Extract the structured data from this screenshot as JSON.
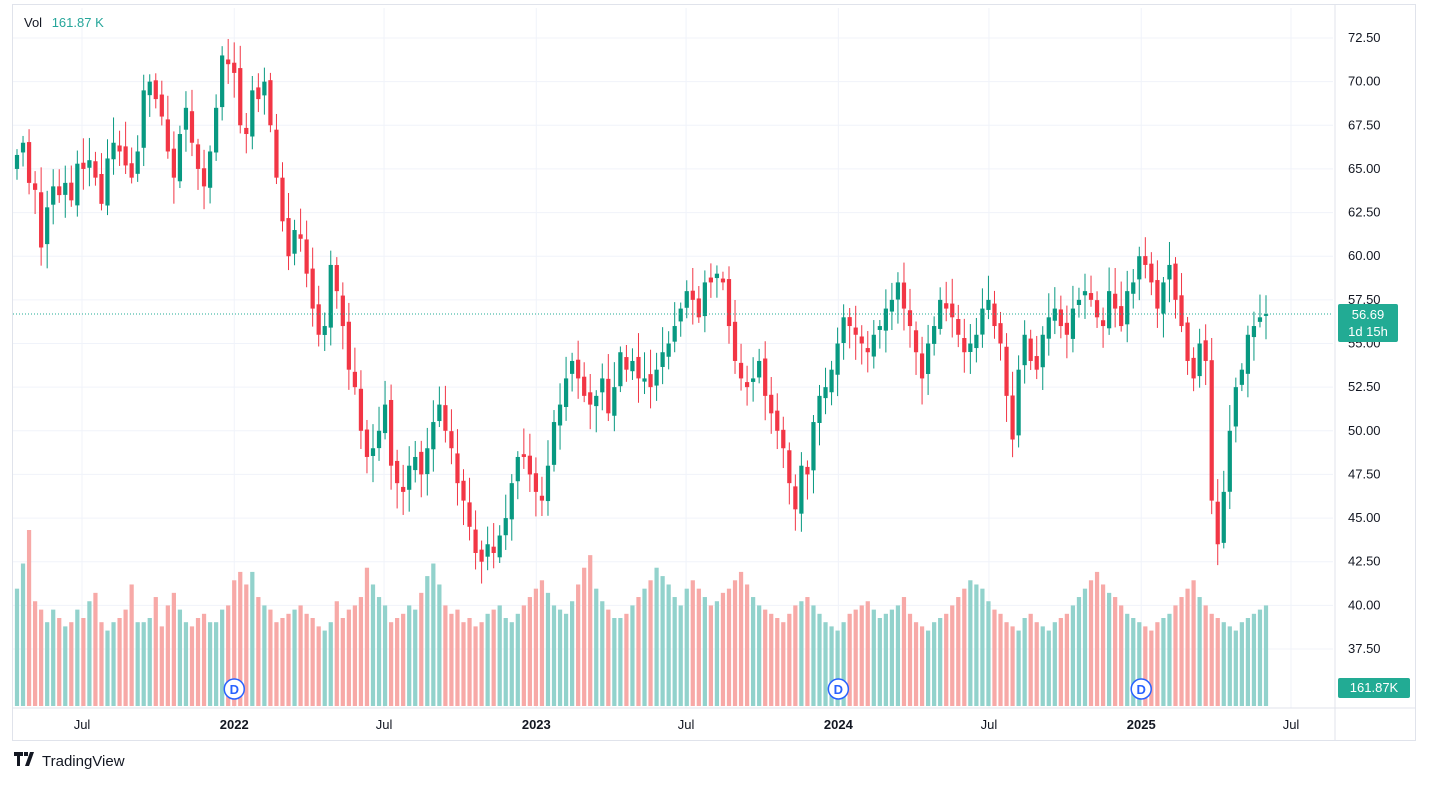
{
  "legend": {
    "label": "Vol",
    "value": "161.87 K"
  },
  "price_tag": {
    "price": "56.69",
    "countdown": "1d 15h"
  },
  "volume_tag": "161.87K",
  "branding": {
    "name": "TradingView",
    "logo": "tradingview-logo-icon"
  },
  "colors": {
    "up": "#089981",
    "down": "#f23645",
    "up_vol": "#92d2cc",
    "down_vol": "#f7a9a7",
    "marker": "#2962ff",
    "price_line": "#22ab94"
  },
  "chart_data": {
    "type": "candlestick",
    "title": "",
    "interval": "weekly",
    "y_ticks": [
      72.5,
      70.0,
      67.5,
      65.0,
      62.5,
      60.0,
      57.5,
      55.0,
      52.5,
      50.0,
      47.5,
      45.0,
      42.5,
      40.0,
      37.5
    ],
    "y_tick_labels": [
      "72.50",
      "70.00",
      "67.50",
      "65.00",
      "62.50",
      "60.00",
      "57.50",
      "55.00",
      "52.50",
      "50.00",
      "47.50",
      "45.00",
      "42.50",
      "40.00",
      "37.50"
    ],
    "ylim": [
      36.0,
      74.0
    ],
    "x_labels": [
      {
        "label": "Jul",
        "year": false,
        "t": "2021-07-01"
      },
      {
        "label": "2022",
        "year": true,
        "t": "2022-01-01"
      },
      {
        "label": "Jul",
        "year": false,
        "t": "2022-07-01"
      },
      {
        "label": "2023",
        "year": true,
        "t": "2023-01-01"
      },
      {
        "label": "Jul",
        "year": false,
        "t": "2023-07-01"
      },
      {
        "label": "2024",
        "year": true,
        "t": "2024-01-01"
      },
      {
        "label": "Jul",
        "year": false,
        "t": "2024-07-01"
      },
      {
        "label": "2025",
        "year": true,
        "t": "2025-01-01"
      },
      {
        "label": "Jul",
        "year": false,
        "t": "2025-07-01"
      }
    ],
    "last_price": 56.69,
    "dividend_markers": [
      {
        "label": "D",
        "t": "2022-01-01"
      },
      {
        "label": "D",
        "t": "2024-01-01"
      },
      {
        "label": "D",
        "t": "2025-01-01"
      }
    ],
    "close_series": [
      65.8,
      66.5,
      64.2,
      63.8,
      60.5,
      62.8,
      64.0,
      63.5,
      64.2,
      63.2,
      65.3,
      65.0,
      65.5,
      64.5,
      63.0,
      65.6,
      66.5,
      66.0,
      65.2,
      64.5,
      66.0,
      69.5,
      70.0,
      69.0,
      68.0,
      66.0,
      64.5,
      67.0,
      68.5,
      66.5,
      65.0,
      64.0,
      66.0,
      68.5,
      71.5,
      71.0,
      70.5,
      67.5,
      67.0,
      69.5,
      69.0,
      70.0,
      67.5,
      64.5,
      62.0,
      60.0,
      61.5,
      61.0,
      59.0,
      57.0,
      55.5,
      56.0,
      59.5,
      58.0,
      56.0,
      53.5,
      52.5,
      50.0,
      48.5,
      49.0,
      50.0,
      51.5,
      48.0,
      47.0,
      46.5,
      48.0,
      48.5,
      47.5,
      49.0,
      50.5,
      51.5,
      50.0,
      49.0,
      47.0,
      46.0,
      44.5,
      43.0,
      42.5,
      43.5,
      43.0,
      44.0,
      45.0,
      47.0,
      48.5,
      48.5,
      47.5,
      46.5,
      46.0,
      48.0,
      50.5,
      51.5,
      53.0,
      54.0,
      53.0,
      52.0,
      51.5,
      52.0,
      53.0,
      51.0,
      52.5,
      54.5,
      53.5,
      54.0,
      53.0,
      53.0,
      52.5,
      53.5,
      54.5,
      55.0,
      56.0,
      57.0,
      58.0,
      57.5,
      56.5,
      58.5,
      58.5,
      59.0,
      58.5,
      56.0,
      54.0,
      53.0,
      52.5,
      53.0,
      54.0,
      52.0,
      51.0,
      50.0,
      49.0,
      47.0,
      45.5,
      48.0,
      47.5,
      50.5,
      52.0,
      52.5,
      53.5,
      55.0,
      56.5,
      56.0,
      55.5,
      55.0,
      54.5,
      55.5,
      56.0,
      57.0,
      57.5,
      58.5,
      57.0,
      56.0,
      54.5,
      53.0,
      55.0,
      56.0,
      57.5,
      57.0,
      56.5,
      55.5,
      54.5,
      55.0,
      55.5,
      57.0,
      57.5,
      56.0,
      55.0,
      52.0,
      49.5,
      53.5,
      55.5,
      54.0,
      53.5,
      55.5,
      56.5,
      57.0,
      56.0,
      55.5,
      57.0,
      57.5,
      58.0,
      57.5,
      56.5,
      56.0,
      58.0,
      57.0,
      56.0,
      58.0,
      58.5,
      60.0,
      59.5,
      58.5,
      57.0,
      58.5,
      59.5,
      57.5,
      56.0,
      54.0,
      53.0,
      55.0,
      54.0,
      46.0,
      43.5,
      46.5,
      50.0,
      52.5,
      53.5,
      55.5,
      56.0,
      56.5,
      56.69
    ],
    "volume_series": [
      280,
      340,
      420,
      250,
      230,
      200,
      230,
      210,
      190,
      200,
      230,
      210,
      250,
      270,
      200,
      180,
      200,
      210,
      230,
      290,
      200,
      200,
      210,
      260,
      190,
      240,
      270,
      230,
      200,
      190,
      210,
      220,
      200,
      200,
      230,
      240,
      300,
      320,
      290,
      320,
      260,
      240,
      230,
      200,
      210,
      220,
      230,
      240,
      220,
      210,
      190,
      180,
      200,
      250,
      210,
      230,
      240,
      260,
      330,
      290,
      260,
      240,
      200,
      210,
      220,
      240,
      230,
      270,
      310,
      340,
      290,
      240,
      220,
      230,
      200,
      210,
      190,
      200,
      220,
      230,
      240,
      210,
      200,
      220,
      240,
      260,
      280,
      300,
      270,
      240,
      230,
      220,
      250,
      290,
      330,
      360,
      280,
      250,
      230,
      210,
      210,
      220,
      240,
      260,
      280,
      300,
      330,
      310,
      290,
      260,
      240,
      280,
      300,
      280,
      260,
      240,
      250,
      270,
      280,
      300,
      320,
      290,
      260,
      240,
      230,
      220,
      210,
      200,
      220,
      240,
      250,
      260,
      240,
      220,
      200,
      190,
      180,
      200,
      220,
      230,
      240,
      250,
      230,
      210,
      220,
      230,
      240,
      260,
      220,
      200,
      190,
      180,
      200,
      210,
      220,
      240,
      260,
      280,
      300,
      290,
      280,
      250,
      230,
      220,
      200,
      190,
      180,
      210,
      220,
      200,
      190,
      180,
      200,
      210,
      220,
      240,
      260,
      280,
      300,
      320,
      290,
      270,
      260,
      240,
      220,
      210,
      200,
      190,
      180,
      200,
      210,
      220,
      240,
      260,
      280,
      300,
      260,
      240,
      220,
      210,
      200,
      190,
      180,
      200,
      210,
      220,
      230,
      240,
      210,
      200,
      190,
      180,
      170,
      161.87
    ]
  }
}
